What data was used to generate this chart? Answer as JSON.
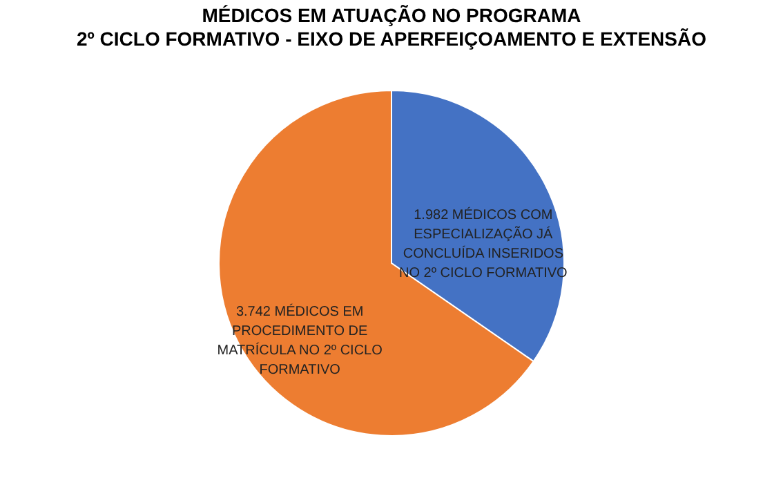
{
  "chart_data": {
    "type": "pie",
    "title": "MÉDICOS EM ATUAÇÃO NO PROGRAMA",
    "subtitle": "2º CICLO FORMATIVO - EIXO DE APERFEIÇOAMENTO E EXTENSÃO",
    "categories": [
      "MÉDICOS COM ESPECIALIZAÇÃO JÁ CONCLUÍDA INSERIDOS NO 2º CICLO FORMATIVO",
      "MÉDICOS EM PROCEDIMENTO DE MATRÍCULA NO 2º CICLO FORMATIVO"
    ],
    "values": [
      1982,
      3742
    ],
    "value_labels": [
      "1.982",
      "3.742"
    ],
    "colors": [
      "#4472c4",
      "#ed7d31"
    ],
    "legend": false
  }
}
